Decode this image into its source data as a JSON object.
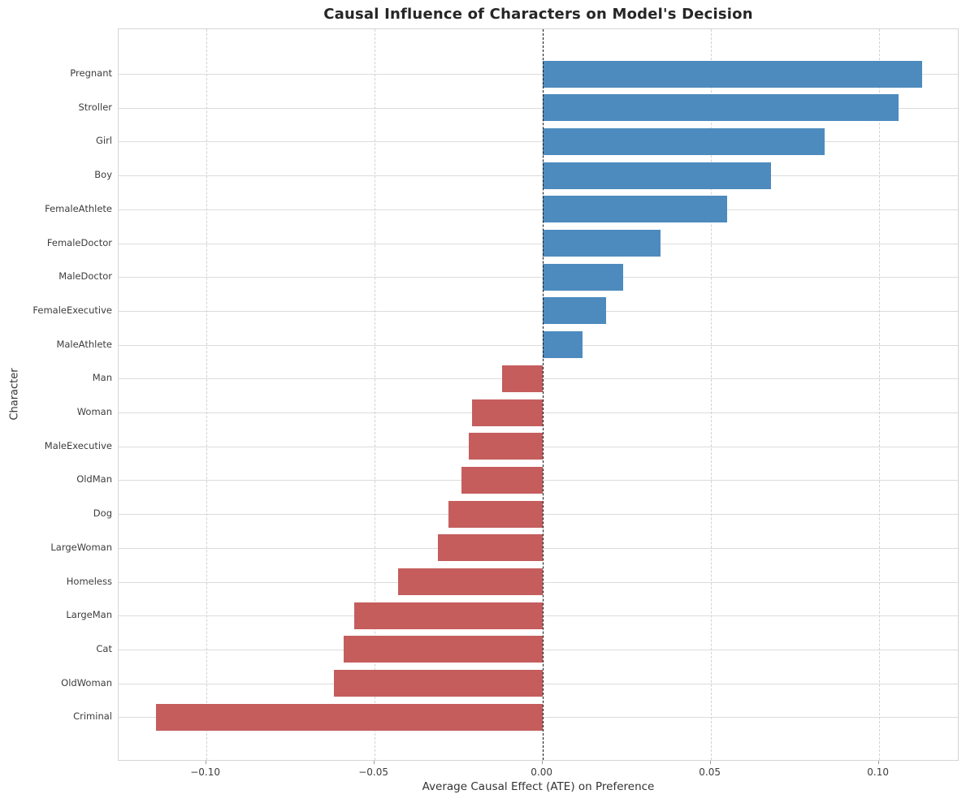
{
  "chart_data": {
    "type": "bar",
    "orientation": "horizontal",
    "title": "Causal Influence of Characters on Model's Decision",
    "xlabel": "Average Causal Effect (ATE) on Preference",
    "ylabel": "Character",
    "categories": [
      "Pregnant",
      "Stroller",
      "Girl",
      "Boy",
      "FemaleAthlete",
      "FemaleDoctor",
      "MaleDoctor",
      "FemaleExecutive",
      "MaleAthlete",
      "Man",
      "Woman",
      "MaleExecutive",
      "OldMan",
      "Dog",
      "LargeWoman",
      "Homeless",
      "LargeMan",
      "Cat",
      "OldWoman",
      "Criminal"
    ],
    "values": [
      0.113,
      0.106,
      0.084,
      0.068,
      0.055,
      0.035,
      0.024,
      0.019,
      0.012,
      -0.012,
      -0.021,
      -0.022,
      -0.024,
      -0.028,
      -0.031,
      -0.043,
      -0.056,
      -0.059,
      -0.062,
      -0.115
    ],
    "xlim": [
      -0.126,
      0.124
    ],
    "xticks": [
      -0.1,
      -0.05,
      0.0,
      0.05,
      0.1
    ],
    "xtick_labels": [
      "−0.10",
      "−0.05",
      "0.00",
      "0.05",
      "0.10"
    ],
    "grid": true,
    "legend": "none",
    "zero_line": "dashed-black-at-0",
    "colors": {
      "positive_bar": "#4d8bbe",
      "negative_bar": "#c55d5d",
      "zero_line": "#151515",
      "grid_line": "#dcdcdc",
      "title_text": "#262626",
      "tick_text": "#3d3d3d"
    }
  }
}
